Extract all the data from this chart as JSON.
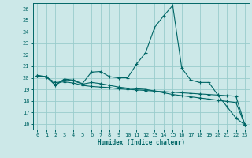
{
  "title": "",
  "xlabel": "Humidex (Indice chaleur)",
  "ylabel": "",
  "bg_color": "#cce8e8",
  "grid_color": "#99cccc",
  "line_color": "#006666",
  "xlim": [
    -0.5,
    23.5
  ],
  "ylim": [
    15.5,
    26.5
  ],
  "xticks": [
    0,
    1,
    2,
    3,
    4,
    5,
    6,
    7,
    8,
    9,
    10,
    11,
    12,
    13,
    14,
    15,
    16,
    17,
    18,
    19,
    20,
    21,
    22,
    23
  ],
  "yticks": [
    16,
    17,
    18,
    19,
    20,
    21,
    22,
    23,
    24,
    25,
    26
  ],
  "series": [
    [
      20.2,
      20.1,
      19.4,
      19.9,
      19.8,
      19.5,
      20.5,
      20.55,
      20.1,
      20.0,
      20.0,
      21.2,
      22.2,
      24.4,
      25.4,
      26.3,
      20.85,
      19.8,
      19.6,
      19.6,
      18.5,
      17.5,
      16.5,
      15.9
    ],
    [
      20.2,
      20.1,
      19.35,
      19.85,
      19.75,
      19.45,
      19.6,
      19.5,
      19.35,
      19.2,
      19.1,
      19.05,
      19.0,
      18.85,
      18.7,
      18.55,
      18.45,
      18.35,
      18.25,
      18.15,
      18.05,
      17.95,
      17.85,
      15.9
    ],
    [
      20.2,
      20.05,
      19.6,
      19.65,
      19.55,
      19.35,
      19.25,
      19.2,
      19.15,
      19.05,
      19.0,
      18.95,
      18.9,
      18.85,
      18.8,
      18.75,
      18.7,
      18.65,
      18.6,
      18.55,
      18.5,
      18.45,
      18.4,
      15.9
    ]
  ]
}
